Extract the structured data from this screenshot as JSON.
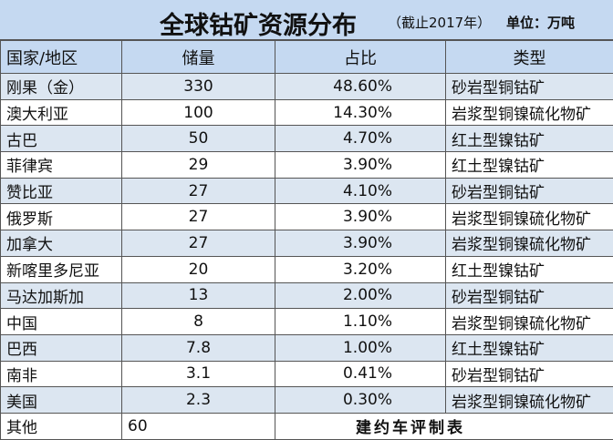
{
  "header": {
    "title": "全球钴矿资源分布",
    "subtitle": "（截止2017年）",
    "unit": "单位：万吨"
  },
  "table": {
    "columns": [
      "国家/地区",
      "储量",
      "占比",
      "类型"
    ],
    "rows": [
      [
        "刚果（金）",
        "330",
        "48.60%",
        "砂岩型铜钴矿"
      ],
      [
        "澳大利亚",
        "100",
        "14.30%",
        "岩浆型铜镍硫化物矿"
      ],
      [
        "古巴",
        "50",
        "4.70%",
        "红土型镍钴矿"
      ],
      [
        "菲律宾",
        "29",
        "3.90%",
        "红土型镍钴矿"
      ],
      [
        "赞比亚",
        "27",
        "4.10%",
        "砂岩型铜钴矿"
      ],
      [
        "俄罗斯",
        "27",
        "3.90%",
        "岩浆型铜镍硫化物矿"
      ],
      [
        "加拿大",
        "27",
        "3.90%",
        "岩浆型铜镍硫化物矿"
      ],
      [
        "新喀里多尼亚",
        "20",
        "3.20%",
        "红土型镍钴矿"
      ],
      [
        "马达加斯加",
        "13",
        "2.00%",
        "砂岩型铜钴矿"
      ],
      [
        "中国",
        "8",
        "1.10%",
        "岩浆型铜镍硫化物矿"
      ],
      [
        "巴西",
        "7.8",
        "1.00%",
        "红土型镍钴矿"
      ],
      [
        "南非",
        "3.1",
        "0.41%",
        "砂岩型铜钴矿"
      ],
      [
        "美国",
        "2.3",
        "0.30%",
        "岩浆型铜镍硫化物矿"
      ]
    ],
    "other": [
      "其他",
      "60"
    ],
    "credit": "建约车评制表"
  }
}
